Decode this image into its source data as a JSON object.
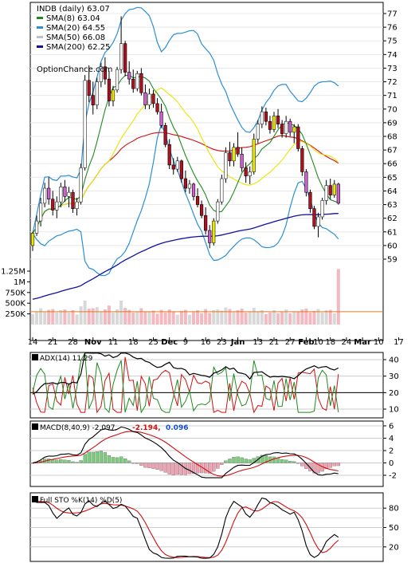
{
  "chart_data": {
    "type": "candlestick-study",
    "symbol_header": "INDB (daily) 63.07",
    "watermark": "OptionChance.com",
    "price_panel": {
      "yticks": [
        59,
        60,
        61,
        62,
        63,
        64,
        65,
        66,
        67,
        68,
        69,
        70,
        71,
        72,
        73,
        74,
        75,
        76,
        77
      ],
      "legend": [
        {
          "label": "SMA(8) 63.04",
          "color": "#1f8a1f"
        },
        {
          "label": "SMA(20) 64.55",
          "color": "#2a8fd6"
        },
        {
          "label": "SMA(50) 66.08",
          "color": "#c0c0c0"
        },
        {
          "label": "SMA(200) 62.25",
          "color": "#1010a0"
        }
      ],
      "candles": [
        [
          60.0,
          61.0,
          59.6,
          60.9
        ],
        [
          60.9,
          62.2,
          60.7,
          61.8
        ],
        [
          61.8,
          63.5,
          61.4,
          63.1
        ],
        [
          63.1,
          64.6,
          62.8,
          64.2
        ],
        [
          64.2,
          65.0,
          63.0,
          63.4
        ],
        [
          63.4,
          64.0,
          62.2,
          62.6
        ],
        [
          62.6,
          63.6,
          62.0,
          63.2
        ],
        [
          63.2,
          64.6,
          62.8,
          64.3
        ],
        [
          64.3,
          64.8,
          63.2,
          63.6
        ],
        [
          63.6,
          64.3,
          62.8,
          63.9
        ],
        [
          63.9,
          64.1,
          62.4,
          62.7
        ],
        [
          62.7,
          63.5,
          62.2,
          63.2
        ],
        [
          63.2,
          66.0,
          63.0,
          65.7
        ],
        [
          65.7,
          72.5,
          65.5,
          72.1
        ],
        [
          72.1,
          73.2,
          70.5,
          71.0
        ],
        [
          71.0,
          72.0,
          69.6,
          70.3
        ],
        [
          70.3,
          72.3,
          70.0,
          72.0
        ],
        [
          72.0,
          73.4,
          71.6,
          73.1
        ],
        [
          73.1,
          73.8,
          71.8,
          72.2
        ],
        [
          72.2,
          72.8,
          70.2,
          70.6
        ],
        [
          70.6,
          71.7,
          70.2,
          71.4
        ],
        [
          71.4,
          73.1,
          71.2,
          72.9
        ],
        [
          72.9,
          76.8,
          72.6,
          74.8
        ],
        [
          74.8,
          75.0,
          72.4,
          72.7
        ],
        [
          72.7,
          73.5,
          71.8,
          72.2
        ],
        [
          72.2,
          72.9,
          71.2,
          71.5
        ],
        [
          71.5,
          72.8,
          71.3,
          72.6
        ],
        [
          72.6,
          73.0,
          71.0,
          71.2
        ],
        [
          71.2,
          71.8,
          70.0,
          70.3
        ],
        [
          70.3,
          71.5,
          70.0,
          71.1
        ],
        [
          71.1,
          71.4,
          70.1,
          70.4
        ],
        [
          70.4,
          70.8,
          69.6,
          69.8
        ],
        [
          69.8,
          70.4,
          68.6,
          68.8
        ],
        [
          68.8,
          69.0,
          67.2,
          67.4
        ],
        [
          67.4,
          67.8,
          65.6,
          65.9
        ],
        [
          65.9,
          66.4,
          65.2,
          65.6
        ],
        [
          65.6,
          66.5,
          65.4,
          66.2
        ],
        [
          66.2,
          66.3,
          64.6,
          64.9
        ],
        [
          64.9,
          65.5,
          63.9,
          64.2
        ],
        [
          64.2,
          64.8,
          63.8,
          64.5
        ],
        [
          64.5,
          64.6,
          63.3,
          63.6
        ],
        [
          63.6,
          64.2,
          62.8,
          63.0
        ],
        [
          63.0,
          63.3,
          62.0,
          62.2
        ],
        [
          62.2,
          62.8,
          60.8,
          61.1
        ],
        [
          61.1,
          61.5,
          59.8,
          60.2
        ],
        [
          60.2,
          62.0,
          60.0,
          61.8
        ],
        [
          61.8,
          63.4,
          61.6,
          63.2
        ],
        [
          63.2,
          65.2,
          63.0,
          64.9
        ],
        [
          64.9,
          67.2,
          64.6,
          66.8
        ],
        [
          66.8,
          67.6,
          65.8,
          66.2
        ],
        [
          66.2,
          67.5,
          65.8,
          67.2
        ],
        [
          67.2,
          68.3,
          66.5,
          66.7
        ],
        [
          66.7,
          67.2,
          65.4,
          65.7
        ],
        [
          65.7,
          66.1,
          64.6,
          65.1
        ],
        [
          65.1,
          65.8,
          64.5,
          65.4
        ],
        [
          65.4,
          68.2,
          65.2,
          67.8
        ],
        [
          67.8,
          69.2,
          67.5,
          68.9
        ],
        [
          68.9,
          70.2,
          68.6,
          69.8
        ],
        [
          69.8,
          70.1,
          68.8,
          69.1
        ],
        [
          69.1,
          69.5,
          68.2,
          68.5
        ],
        [
          68.5,
          69.8,
          68.3,
          69.5
        ],
        [
          69.5,
          70.0,
          68.6,
          68.9
        ],
        [
          68.9,
          69.2,
          67.9,
          68.2
        ],
        [
          68.2,
          69.5,
          67.9,
          69.1
        ],
        [
          69.1,
          69.3,
          68.0,
          68.3
        ],
        [
          68.3,
          68.9,
          67.5,
          68.7
        ],
        [
          68.7,
          68.9,
          66.9,
          67.1
        ],
        [
          67.1,
          67.3,
          65.1,
          65.4
        ],
        [
          65.4,
          65.6,
          63.6,
          63.9
        ],
        [
          63.9,
          64.1,
          62.4,
          62.7
        ],
        [
          62.7,
          62.9,
          61.2,
          61.4
        ],
        [
          61.4,
          62.4,
          60.6,
          62.1
        ],
        [
          62.1,
          63.5,
          61.9,
          63.3
        ],
        [
          63.3,
          64.8,
          63.0,
          64.4
        ],
        [
          64.4,
          64.9,
          63.4,
          63.7
        ],
        [
          63.7,
          64.8,
          63.5,
          64.5
        ],
        [
          64.5,
          64.6,
          63.0,
          63.1
        ]
      ]
    },
    "volume_panel": {
      "ytick_labels": [
        "1.25M",
        "1M",
        "750K",
        "500K",
        "250K"
      ],
      "ytick_values": [
        1250000,
        1000000,
        750000,
        500000,
        250000
      ],
      "xlabels": [
        {
          "text": "14",
          "i": 0
        },
        {
          "text": "21",
          "i": 5
        },
        {
          "text": "28",
          "i": 10
        },
        {
          "text": "Nov",
          "i": 15
        },
        {
          "text": "11",
          "i": 20
        },
        {
          "text": "18",
          "i": 25
        },
        {
          "text": "25",
          "i": 30
        },
        {
          "text": "Dec",
          "i": 34
        },
        {
          "text": "9",
          "i": 38
        },
        {
          "text": "16",
          "i": 43
        },
        {
          "text": "23",
          "i": 47
        },
        {
          "text": "Jan",
          "i": 51
        },
        {
          "text": "13",
          "i": 56
        },
        {
          "text": "21",
          "i": 60
        },
        {
          "text": "27",
          "i": 64
        },
        {
          "text": "Feb",
          "i": 68
        },
        {
          "text": "10",
          "i": 71
        },
        {
          "text": "18",
          "i": 74
        },
        {
          "text": "24",
          "i": 78
        },
        {
          "text": "Mar",
          "i": 82
        },
        {
          "text": "10",
          "i": 86
        },
        {
          "text": "17",
          "i": 91
        }
      ]
    },
    "adx_panel": {
      "label": "ADX(14) 11.29",
      "yticks": [
        10,
        20,
        30,
        40
      ]
    },
    "macd_panel": {
      "label": "MACD(8,40,9) -2.097,",
      "label_signal": "-2.194,",
      "label_hist": "0.096",
      "yticks": [
        -2,
        0,
        2,
        4,
        6
      ]
    },
    "sto_panel": {
      "label": "Full STO %K(14) %D(5)",
      "yticks": [
        20,
        50,
        80
      ]
    }
  }
}
